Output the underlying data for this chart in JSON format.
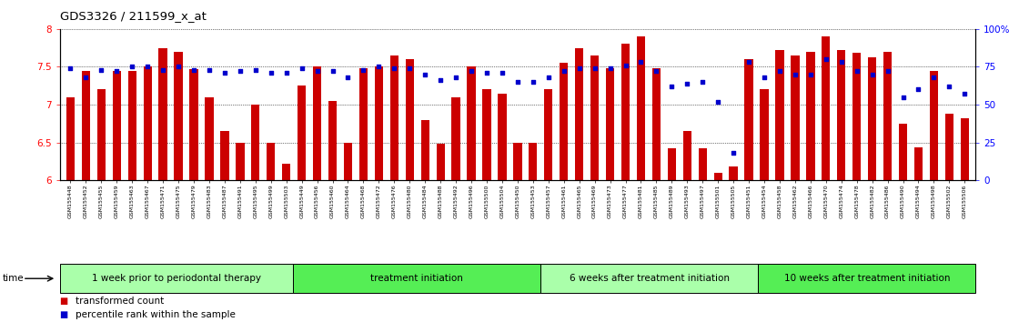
{
  "title": "GDS3326 / 211599_x_at",
  "samples": [
    "GSM155448",
    "GSM155452",
    "GSM155455",
    "GSM155459",
    "GSM155463",
    "GSM155467",
    "GSM155471",
    "GSM155475",
    "GSM155479",
    "GSM155483",
    "GSM155487",
    "GSM155491",
    "GSM155495",
    "GSM155499",
    "GSM155503",
    "GSM155449",
    "GSM155456",
    "GSM155460",
    "GSM155464",
    "GSM155468",
    "GSM155472",
    "GSM155476",
    "GSM155480",
    "GSM155484",
    "GSM155488",
    "GSM155492",
    "GSM155496",
    "GSM155500",
    "GSM155504",
    "GSM155450",
    "GSM155453",
    "GSM155457",
    "GSM155461",
    "GSM155465",
    "GSM155469",
    "GSM155473",
    "GSM155477",
    "GSM155481",
    "GSM155485",
    "GSM155489",
    "GSM155493",
    "GSM155497",
    "GSM155501",
    "GSM155505",
    "GSM155451",
    "GSM155454",
    "GSM155458",
    "GSM155462",
    "GSM155466",
    "GSM155470",
    "GSM155474",
    "GSM155478",
    "GSM155482",
    "GSM155486",
    "GSM155490",
    "GSM155494",
    "GSM155498",
    "GSM155502",
    "GSM155506"
  ],
  "bar_values": [
    7.1,
    7.45,
    7.2,
    7.45,
    7.45,
    7.5,
    7.75,
    7.7,
    7.47,
    7.1,
    6.65,
    6.5,
    7.0,
    6.5,
    6.22,
    7.25,
    7.5,
    7.05,
    6.5,
    7.48,
    7.5,
    7.65,
    7.6,
    6.8,
    6.48,
    7.1,
    7.5,
    7.2,
    7.15,
    6.5,
    6.5,
    7.2,
    7.55,
    7.75,
    7.65,
    7.48,
    7.8,
    7.9,
    7.48,
    6.42,
    6.65,
    6.42,
    6.1,
    6.18,
    7.6,
    7.2,
    7.72,
    7.65,
    7.7,
    7.9,
    7.72,
    7.68,
    7.62,
    7.7,
    6.75,
    6.43,
    7.45,
    6.88,
    6.82
  ],
  "dot_values": [
    74,
    68,
    73,
    72,
    75,
    75,
    73,
    75,
    73,
    73,
    71,
    72,
    73,
    71,
    71,
    74,
    72,
    72,
    68,
    73,
    75,
    74,
    74,
    70,
    66,
    68,
    72,
    71,
    71,
    65,
    65,
    68,
    72,
    74,
    74,
    74,
    76,
    78,
    72,
    62,
    64,
    65,
    52,
    18,
    78,
    68,
    72,
    70,
    70,
    80,
    78,
    72,
    70,
    72,
    55,
    60,
    68,
    62,
    57
  ],
  "group_boundaries": [
    0,
    15,
    31,
    45,
    59
  ],
  "group_labels": [
    "1 week prior to periodontal therapy",
    "treatment initiation",
    "6 weeks after treatment initiation",
    "10 weeks after treatment initiation"
  ],
  "group_colors": [
    "#aaffaa",
    "#55ee55",
    "#aaffaa",
    "#55ee55"
  ],
  "ylim_left": [
    6.0,
    8.0
  ],
  "ylim_right": [
    0,
    100
  ],
  "yticks_left": [
    6.0,
    6.5,
    7.0,
    7.5,
    8.0
  ],
  "ytick_labels_left": [
    "6",
    "6.5",
    "7",
    "7.5",
    "8"
  ],
  "yticks_right": [
    0,
    25,
    50,
    75,
    100
  ],
  "ytick_labels_right": [
    "0",
    "25",
    "50",
    "75",
    "100%"
  ],
  "bar_color": "#cc0000",
  "dot_color": "#0000cc",
  "bg_color": "#ffffff",
  "legend_items": [
    "transformed count",
    "percentile rank within the sample"
  ]
}
